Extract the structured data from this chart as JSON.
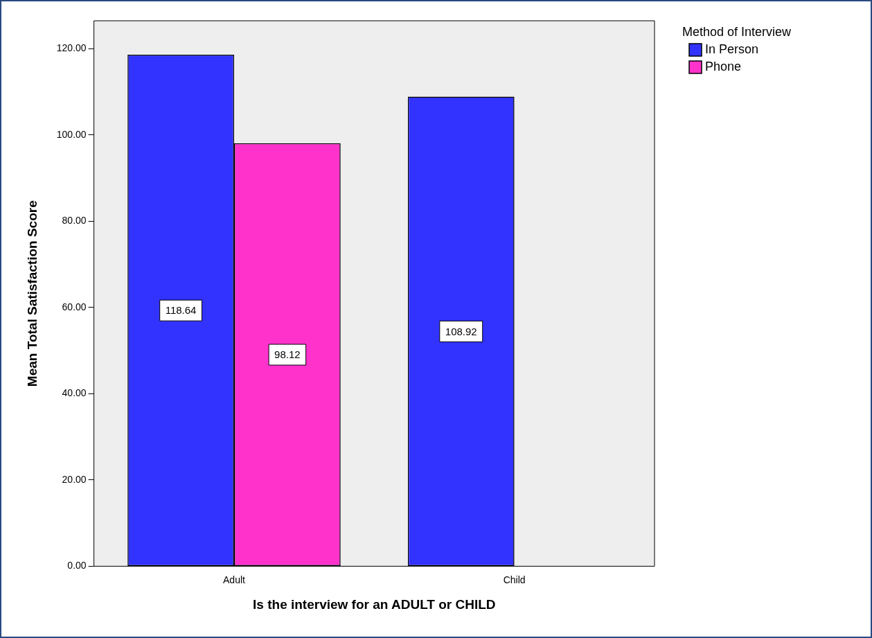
{
  "chart_data": {
    "type": "bar",
    "xlabel": "Is the interview for an ADULT or CHILD",
    "ylabel": "Mean Total Satisfaction Score",
    "legend_title": "Method of Interview",
    "categories": [
      "Adult",
      "Child"
    ],
    "series": [
      {
        "name": "In Person",
        "color": "#3333ff",
        "values": [
          118.64,
          108.92
        ]
      },
      {
        "name": "Phone",
        "color": "#ff33cc",
        "values": [
          98.12,
          null
        ]
      }
    ],
    "ylim": [
      0,
      126.5
    ],
    "yticks": [
      {
        "value": 0,
        "label": "0.00"
      },
      {
        "value": 20,
        "label": "20.00"
      },
      {
        "value": 40,
        "label": "40.00"
      },
      {
        "value": 60,
        "label": "60.00"
      },
      {
        "value": 80,
        "label": "80.00"
      },
      {
        "value": 100,
        "label": "100.00"
      },
      {
        "value": 120,
        "label": "120.00"
      }
    ],
    "grid": false,
    "legend": "top right",
    "data_labels": true
  }
}
